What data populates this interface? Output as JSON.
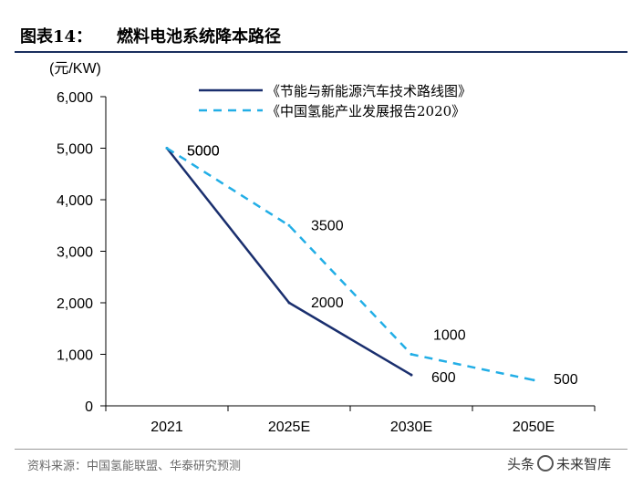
{
  "header": {
    "figure_label": "图表14：",
    "title": "燃料电池系统降本路径"
  },
  "footer": {
    "source": "资料来源：中国氢能联盟、华泰研究预测",
    "watermark_prefix": "头条",
    "watermark_name": "未来智库"
  },
  "colors": {
    "solid_series": "#1a2f6e",
    "dashed_series": "#22aee6",
    "title_rule": "#1a2f5e"
  },
  "chart_data": {
    "type": "line",
    "title": "燃料电池系统降本路径",
    "ylabel": "(元/KW)",
    "xlabel": "",
    "categories": [
      "2021",
      "2025E",
      "2030E",
      "2050E"
    ],
    "ylim": [
      0,
      6000
    ],
    "yticks": [
      0,
      1000,
      2000,
      3000,
      4000,
      5000,
      6000
    ],
    "ytick_labels": [
      "0",
      "1,000",
      "2,000",
      "3,000",
      "4,000",
      "5,000",
      "6,000"
    ],
    "legend_position": "top",
    "series": [
      {
        "name": "《节能与新能源汽车技术路线图》",
        "style": "solid",
        "values": [
          5000,
          2000,
          600,
          null
        ],
        "labels": [
          "5000",
          "2000",
          "600",
          null
        ]
      },
      {
        "name": "《中国氢能产业发展报告2020》",
        "style": "dashed",
        "values": [
          5000,
          3500,
          1000,
          500
        ],
        "labels": [
          "5000",
          "3500",
          "1000",
          "500"
        ]
      }
    ]
  }
}
